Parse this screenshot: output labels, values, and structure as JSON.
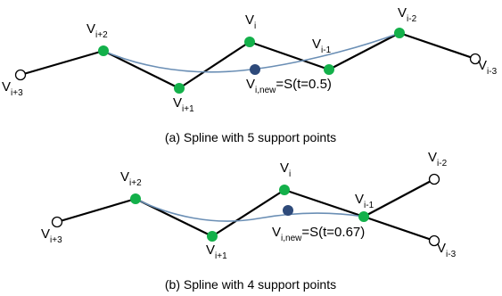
{
  "panel_a": {
    "caption": "(a) Spline with 5 support points",
    "vertices": [
      {
        "base": "V",
        "sub": "i+3"
      },
      {
        "base": "V",
        "sub": "i+2"
      },
      {
        "base": "V",
        "sub": "i+1"
      },
      {
        "base": "V",
        "sub": "i"
      },
      {
        "base": "V",
        "sub": "i-1"
      },
      {
        "base": "V",
        "sub": "i-2"
      },
      {
        "base": "V",
        "sub": "i-3"
      }
    ],
    "new_point": {
      "base": "V",
      "sub": "i,new",
      "expr": "=S(t=0.5)"
    }
  },
  "panel_b": {
    "caption": "(b) Spline with 4 support points",
    "vertices": [
      {
        "base": "V",
        "sub": "i+3"
      },
      {
        "base": "V",
        "sub": "i+2"
      },
      {
        "base": "V",
        "sub": "i+1"
      },
      {
        "base": "V",
        "sub": "i"
      },
      {
        "base": "V",
        "sub": "i-1"
      },
      {
        "base": "V",
        "sub": "i-2"
      },
      {
        "base": "V",
        "sub": "i-3"
      }
    ],
    "new_point": {
      "base": "V",
      "sub": "i,new",
      "expr": "=S(t=0.67)"
    }
  },
  "colors": {
    "support_point": "#13b04a",
    "new_point": "#2e4a7a",
    "spline": "#6b8fb5",
    "polyline": "#000000"
  }
}
